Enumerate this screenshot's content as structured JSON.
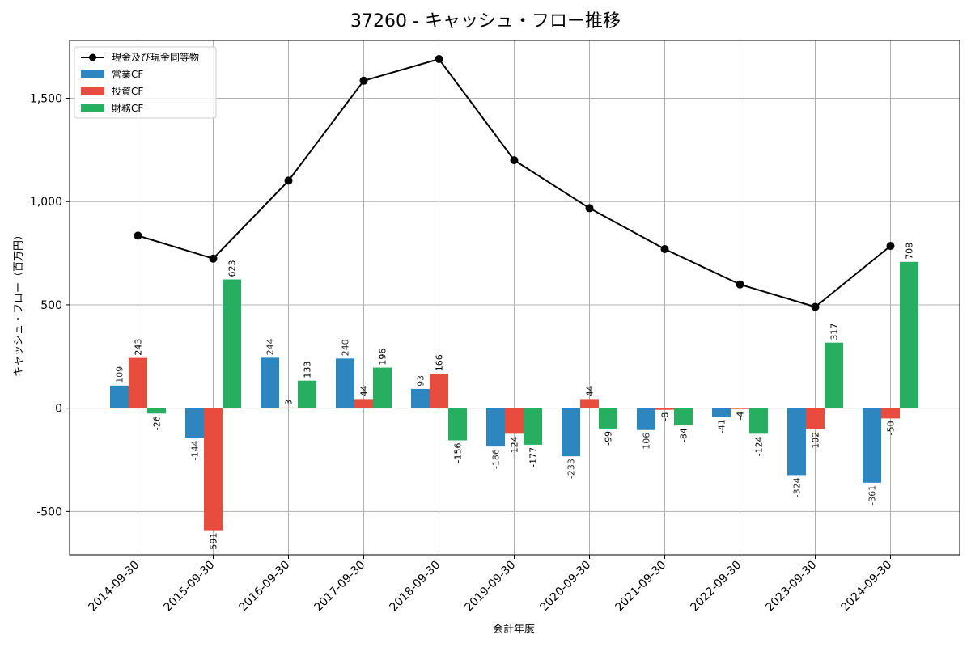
{
  "chart_data": {
    "type": "bar",
    "title": "37260 - キャッシュ・フロー推移",
    "xlabel": "会計年度",
    "ylabel": "キャッシュ・フロー（百万円）",
    "categories": [
      "2014-09-30",
      "2015-09-30",
      "2016-09-30",
      "2017-09-30",
      "2018-09-30",
      "2019-09-30",
      "2020-09-30",
      "2021-09-30",
      "2022-09-30",
      "2023-09-30",
      "2024-09-30"
    ],
    "ylim": [
      -710,
      1780
    ],
    "yticks": [
      -500,
      0,
      500,
      1000,
      1500
    ],
    "ytick_labels": [
      "-500",
      "0",
      "500",
      "1,000",
      "1,500"
    ],
    "grid": true,
    "legend_position": "top-left",
    "series": [
      {
        "name": "営業CF",
        "kind": "bar",
        "color": "#2e86c1",
        "values": [
          109,
          -144,
          244,
          240,
          93,
          -186,
          -233,
          -106,
          -41,
          -324,
          -361
        ],
        "labels": [
          "109",
          "-144",
          "244",
          "240",
          "93",
          "-186",
          "-233",
          "-106",
          "-41",
          "-324",
          "-361"
        ]
      },
      {
        "name": "投資CF",
        "kind": "bar",
        "color": "#e74c3c",
        "values": [
          243,
          -591,
          3,
          44,
          166,
          -124,
          44,
          -8,
          -4,
          -102,
          -50
        ],
        "labels": [
          "243",
          "-591",
          "3",
          "44",
          "166",
          "-124",
          "44",
          "-8",
          "-4",
          "-102",
          "-50"
        ]
      },
      {
        "name": "財務CF",
        "kind": "bar",
        "color": "#27ae60",
        "values": [
          -26,
          623,
          133,
          196,
          -156,
          -177,
          -99,
          -84,
          -124,
          317,
          708
        ],
        "labels": [
          "-26",
          "623",
          "133",
          "196",
          "-156",
          "-177",
          "-99",
          "-84",
          "-124",
          "317",
          "708"
        ]
      },
      {
        "name": "現金及び現金同等物",
        "kind": "line",
        "color": "#000000",
        "values": [
          835,
          724,
          1101,
          1585,
          1690,
          1200,
          968,
          770,
          599,
          490,
          785
        ]
      }
    ]
  }
}
